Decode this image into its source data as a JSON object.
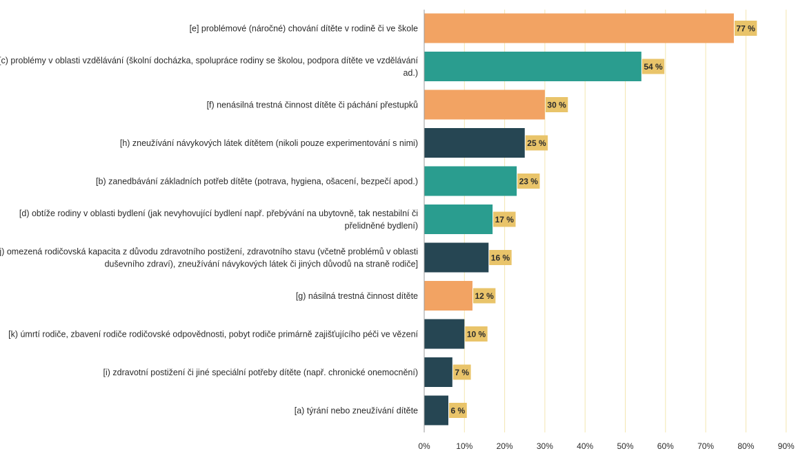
{
  "chart_data": {
    "type": "bar",
    "orientation": "horizontal",
    "title": "",
    "xlabel": "",
    "ylabel": "",
    "xlim": [
      0,
      90
    ],
    "x_ticks": [
      "0%",
      "10%",
      "20%",
      "30%",
      "40%",
      "50%",
      "60%",
      "70%",
      "80%",
      "90%"
    ],
    "grid": "vertical",
    "value_suffix": " %",
    "categories": [
      [
        "[e] problémové (náročné) chování dítěte v rodině či ve škole"
      ],
      [
        "[c) problémy v oblasti vzdělávání (školní docházka, spolupráce rodiny se školou, podpora dítěte ve vzdělávání",
        "ad.)"
      ],
      [
        "[f) nenásilná trestná činnost dítěte či páchání přestupků"
      ],
      [
        "[h) zneužívání návykových látek dítětem (nikoli pouze experimentování s nimi)"
      ],
      [
        "[b) zanedbávání základních potřeb dítěte (potrava, hygiena, ošacení, bezpečí apod.)"
      ],
      [
        "[d) obtíže rodiny v oblasti bydlení (jak nevyhovující bydlení např. přebývání na ubytovně, tak nestabilní či",
        "přelidněné bydlení)"
      ],
      [
        "[j) omezená rodičovská kapacita z důvodu zdravotního postižení, zdravotního stavu (včetně problémů v oblasti",
        "duševního zdraví), zneužívání návykových látek či jiných důvodů na straně rodiče]"
      ],
      [
        "[g) násilná trestná činnost dítěte"
      ],
      [
        "[k) úmrtí rodiče, zbavení rodiče rodičovské odpovědnosti, pobyt rodiče primárně zajišťujícího péči ve vězení"
      ],
      [
        "[i) zdravotní postižení či jiné speciální potřeby dítěte (např. chronické onemocnění)"
      ],
      [
        "[a) týrání nebo zneužívání dítěte"
      ]
    ],
    "values": [
      77,
      54,
      30,
      25,
      23,
      17,
      16,
      12,
      10,
      7,
      6
    ],
    "value_labels": [
      "77 %",
      "54 %",
      "30 %",
      "25 %",
      "23 %",
      "17 %",
      "16 %",
      "12 %",
      "10 %",
      "7 %",
      "6 %"
    ],
    "colors": {
      "orange": "#f2a363",
      "teal": "#2a9d8f",
      "dark": "#264653",
      "label_bg": "#e9c46a",
      "grid": "#f3e6b0",
      "axis": "#9a9a9a"
    },
    "bar_colors": [
      "orange",
      "teal",
      "orange",
      "dark",
      "teal",
      "teal",
      "dark",
      "orange",
      "dark",
      "dark",
      "dark"
    ]
  }
}
